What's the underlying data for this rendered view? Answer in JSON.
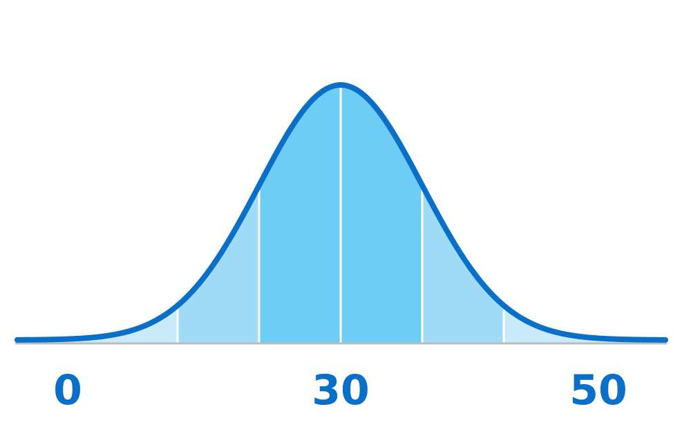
{
  "chart_data": {
    "type": "area",
    "description_shape": "bell curve",
    "tick_labels": [
      "0",
      "30",
      "50"
    ],
    "bands": [
      "outer",
      "middle",
      "center",
      "center",
      "middle",
      "outer"
    ],
    "colors": {
      "curve": "#0a6fc6",
      "center": "#6dcdf5",
      "middle": "#9fdbf6",
      "outer": "#c9eafa",
      "baseline": "#b8bcc0",
      "divider": "#ffffff",
      "labels": "#0a6fc6"
    },
    "grid": false,
    "legend": "none"
  }
}
